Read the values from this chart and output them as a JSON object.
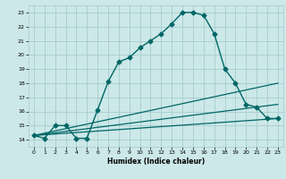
{
  "xlabel": "Humidex (Indice chaleur)",
  "ylabel": "",
  "xlim": [
    -0.5,
    23.5
  ],
  "ylim": [
    13.5,
    23.5
  ],
  "yticks": [
    14,
    15,
    16,
    17,
    18,
    19,
    20,
    21,
    22,
    23
  ],
  "xticks": [
    0,
    1,
    2,
    3,
    4,
    5,
    6,
    7,
    8,
    9,
    10,
    11,
    12,
    13,
    14,
    15,
    16,
    17,
    18,
    19,
    20,
    21,
    22,
    23
  ],
  "bg_color": "#cce8e8",
  "grid_color": "#a8cccc",
  "line_color": "#006666",
  "lines": [
    {
      "x": [
        0,
        1,
        2,
        3,
        4,
        5,
        6,
        7,
        8,
        9,
        10,
        11,
        12,
        13,
        14,
        15,
        16,
        17,
        18,
        19,
        20,
        21,
        22,
        23
      ],
      "y": [
        14.3,
        14.1,
        15.0,
        15.0,
        14.1,
        14.1,
        16.1,
        18.1,
        19.5,
        19.8,
        20.5,
        21.0,
        21.5,
        22.2,
        23.0,
        23.0,
        22.8,
        21.5,
        19.0,
        18.0,
        16.5,
        16.3,
        15.5,
        15.5
      ],
      "marker": "D",
      "markersize": 2.5,
      "linewidth": 1.0,
      "linestyle": "-"
    },
    {
      "x": [
        0,
        23
      ],
      "y": [
        14.3,
        15.5
      ],
      "marker": null,
      "markersize": 0,
      "linewidth": 0.9,
      "linestyle": "-"
    },
    {
      "x": [
        0,
        23
      ],
      "y": [
        14.3,
        16.5
      ],
      "marker": null,
      "markersize": 0,
      "linewidth": 0.9,
      "linestyle": "-"
    },
    {
      "x": [
        0,
        23
      ],
      "y": [
        14.3,
        18.0
      ],
      "marker": null,
      "markersize": 0,
      "linewidth": 0.9,
      "linestyle": "-"
    }
  ],
  "xlabel_fontsize": 5.5,
  "tick_fontsize": 4.5
}
